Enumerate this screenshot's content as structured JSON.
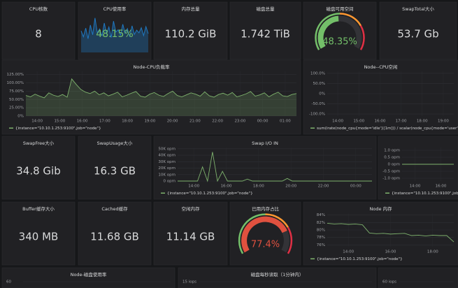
{
  "panels": [
    {
      "kind": "stat",
      "title": "CPU核数",
      "value": 8
    },
    {
      "kind": "sparkstat",
      "title": "CPU使用率",
      "value": "48.15%",
      "ylim": [
        0,
        100
      ],
      "values": [
        55,
        40,
        62,
        35,
        70,
        45,
        88,
        50,
        60,
        42,
        75,
        48,
        65,
        38,
        80,
        52,
        58,
        44,
        72,
        49,
        61,
        40,
        68,
        46,
        57,
        50,
        63,
        43,
        66,
        48
      ]
    },
    {
      "kind": "stat",
      "title": "内存总量",
      "value": "110.2 GiB"
    },
    {
      "kind": "stat",
      "title": "磁盘总量",
      "value": "1.742 TiB"
    },
    {
      "kind": "gauge",
      "title": "磁盘可用空间",
      "value": {
        "value": 48.35,
        "label": "48.35%"
      },
      "ylim": [
        0,
        100
      ],
      "color": "#73bf69"
    },
    {
      "kind": "stat",
      "title": "SwapTotal大小",
      "value": "53.7 Gb"
    },
    {
      "kind": "timeseries",
      "title": "Node-CPU负载率",
      "fill": true,
      "ylim": [
        0,
        135
      ],
      "yticks": [
        {
          "value": 0,
          "label": "0%"
        },
        {
          "value": 25,
          "label": "25.00%"
        },
        {
          "value": 50,
          "label": "50.00%"
        },
        {
          "value": 75,
          "label": "75.00%"
        },
        {
          "value": 100,
          "label": "100.00%"
        },
        {
          "value": 125,
          "label": "125.00%"
        }
      ],
      "xticks": [
        "14:00",
        "15:00",
        "16:00",
        "17:00",
        "18:00",
        "19:00",
        "20:00",
        "21:00",
        "22:00",
        "23:00",
        "00:00",
        "01:00"
      ],
      "legend": "{instance=\"10.10.1.253:9100\",job=\"node\"}",
      "values": [
        62,
        58,
        66,
        60,
        55,
        70,
        63,
        59,
        65,
        57,
        112,
        95,
        80,
        72,
        68,
        75,
        64,
        70,
        61,
        66,
        72,
        58,
        63,
        69,
        74,
        60,
        57,
        66,
        71,
        63,
        59,
        68,
        75,
        62,
        58,
        64,
        70,
        66,
        60,
        73,
        61,
        57,
        65,
        69,
        63,
        71,
        58,
        62,
        67,
        74,
        60,
        64,
        70,
        58,
        66,
        72,
        61,
        59,
        65,
        68
      ]
    },
    {
      "kind": "timeseries",
      "title": "Node--CPU空闲",
      "ylim": [
        -110,
        110
      ],
      "yticks": [
        {
          "value": -100,
          "label": "-100.0%"
        },
        {
          "value": -50,
          "label": "-50.0%"
        },
        {
          "value": 0,
          "label": "0%"
        },
        {
          "value": 50,
          "label": "50.0%"
        },
        {
          "value": 100,
          "label": "100.0%"
        }
      ],
      "xticks": [
        "14:00",
        "15:00",
        "16:00",
        "17:00",
        "18:00",
        "19:00"
      ],
      "legend": "sum(irate(node_cpu{mode='idle'}[1m])) / scalar(node_cpu{mode='user'})",
      "values": []
    },
    {
      "kind": "stat",
      "title": "SwapFree大小",
      "value": "34.8 Gib"
    },
    {
      "kind": "stat",
      "title": "SwapUsage大小",
      "value": "16.3 GB"
    },
    {
      "kind": "timeseries",
      "title": "Swap I/O IN",
      "ylim": [
        0,
        52000
      ],
      "yticks": [
        {
          "value": 0,
          "label": "0 opm"
        },
        {
          "value": 10000,
          "label": "10K opm"
        },
        {
          "value": 20000,
          "label": "20K opm"
        },
        {
          "value": 30000,
          "label": "30K opm"
        },
        {
          "value": 40000,
          "label": "40K opm"
        },
        {
          "value": 50000,
          "label": "50K opm"
        }
      ],
      "xticks": [
        "14:00",
        "16:00",
        "18:00",
        "20:00",
        "22:00",
        "00:00"
      ],
      "legend": "{instance=\"10.10.1.253:9100\",job=\"node\"}",
      "values": [
        0,
        0,
        0,
        0,
        0,
        22000,
        0,
        45000,
        0,
        15000,
        0,
        0,
        0,
        0,
        3000,
        0,
        0,
        0,
        0,
        0,
        0,
        0,
        4000,
        0,
        0,
        0,
        0,
        0,
        0,
        0,
        0,
        0,
        0,
        0,
        0,
        0,
        0,
        0,
        0,
        0
      ]
    },
    {
      "kind": "timeseries",
      "ylim": [
        -1.2,
        1.2
      ],
      "yticks": [
        {
          "value": -1,
          "label": "-1.0 opm"
        },
        {
          "value": -0.5,
          "label": "-0.5 opm"
        },
        {
          "value": 0,
          "label": "0 opm"
        },
        {
          "value": 0.5,
          "label": "0.5 opm"
        },
        {
          "value": 1,
          "label": "1.0 opm"
        }
      ],
      "xticks": [
        "14:00",
        "16:00"
      ],
      "legend": "{instance=\"10.10.1.253:9100\",job=\"node\"}",
      "values": [
        0,
        0,
        0,
        0,
        0,
        0,
        0,
        0,
        0,
        0
      ]
    },
    {
      "kind": "stat",
      "title": "Buffer缓存大小",
      "value": "340 MB"
    },
    {
      "kind": "stat",
      "title": "Cached缓存",
      "value": "11.68 GB"
    },
    {
      "kind": "stat",
      "title": "空闲内存",
      "value": "11.14 GB"
    },
    {
      "kind": "gauge",
      "title": "已用内存占比",
      "value": {
        "value": 77.4,
        "label": "77.4%"
      },
      "ylim": [
        0,
        100
      ],
      "color": "#e0513f"
    },
    {
      "kind": "timeseries",
      "title": "Node 内存",
      "ylim": [
        75.5,
        84.5
      ],
      "yticks": [
        {
          "value": 76,
          "label": "76%"
        },
        {
          "value": 78,
          "label": "78%"
        },
        {
          "value": 80,
          "label": "80%"
        },
        {
          "value": 82,
          "label": "82%"
        },
        {
          "value": 84,
          "label": "84%"
        }
      ],
      "xticks": [
        "14:00",
        "16:00",
        "18:00"
      ],
      "legend": "{instance=\"10.10.1.253:9100\",job=\"node\"}",
      "values": [
        81.8,
        81.6,
        81.7,
        81.5,
        81.6,
        81.4,
        79.2,
        79.0,
        79.1,
        78.9,
        79.0,
        79.1,
        78.5,
        78.6,
        78.4,
        78.6,
        78.5,
        78.5,
        76.8
      ]
    },
    {
      "kind": "stub",
      "title": "Node-磁盘使用率",
      "yticks": [
        60
      ]
    },
    {
      "kind": "stub",
      "title": "磁盘每秒读取（1分钟内）",
      "yticks": [
        {
          "value": 15,
          "label": "15 iops"
        }
      ]
    },
    {
      "kind": "stub",
      "yticks": [
        {
          "value": 60,
          "label": "60 iops"
        }
      ]
    }
  ]
}
